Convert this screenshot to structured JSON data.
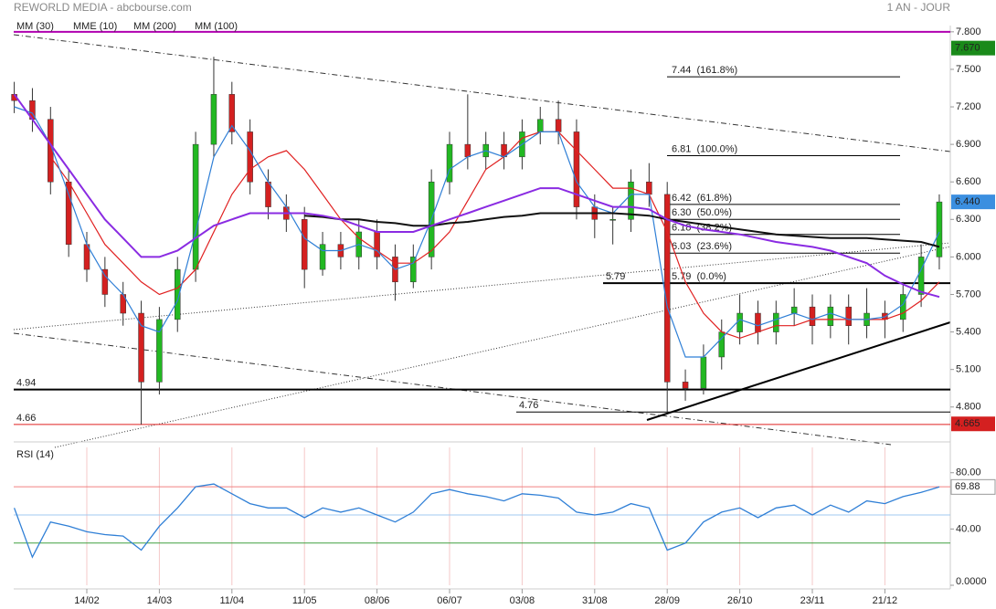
{
  "chart_data": {
    "type": "candlestick",
    "title": "REWORLD MEDIA - abcbourse.com",
    "period": "1 AN - JOUR",
    "categories": [
      null,
      null,
      null,
      null,
      "14/02",
      null,
      null,
      null,
      "14/03",
      null,
      null,
      null,
      "11/04",
      null,
      null,
      null,
      "11/05",
      null,
      null,
      null,
      "08/06",
      null,
      null,
      null,
      "06/07",
      null,
      null,
      null,
      "03/08",
      null,
      null,
      null,
      "31/08",
      null,
      null,
      null,
      "28/09",
      null,
      null,
      null,
      "26/10",
      null,
      null,
      null,
      "23/11",
      null,
      null,
      null,
      "21/12",
      null,
      null,
      null
    ],
    "open": [
      7.3,
      7.25,
      7.1,
      6.6,
      6.1,
      5.9,
      5.7,
      5.55,
      5.0,
      5.5,
      5.9,
      6.9,
      7.3,
      7.0,
      6.6,
      6.4,
      6.3,
      5.9,
      6.1,
      6.0,
      6.2,
      6.0,
      5.8,
      6.0,
      6.6,
      6.9,
      6.8,
      6.9,
      6.8,
      7.0,
      7.1,
      7.0,
      6.4,
      6.3,
      6.3,
      6.6,
      6.5,
      5.0,
      4.95,
      5.2,
      5.4,
      5.55,
      5.4,
      5.55,
      5.6,
      5.45,
      5.6,
      5.45,
      5.55,
      5.5,
      5.7,
      6.0
    ],
    "high": [
      7.4,
      7.35,
      7.2,
      6.7,
      6.2,
      6.0,
      5.8,
      5.65,
      5.6,
      6.0,
      7.0,
      7.6,
      7.4,
      7.1,
      6.7,
      6.5,
      6.4,
      6.2,
      6.2,
      6.3,
      6.3,
      6.1,
      6.1,
      6.7,
      7.0,
      7.3,
      7.0,
      7.0,
      7.1,
      7.2,
      7.25,
      7.1,
      6.5,
      6.4,
      6.7,
      6.75,
      6.6,
      5.1,
      5.3,
      5.5,
      5.7,
      5.65,
      5.65,
      5.75,
      5.7,
      5.7,
      5.7,
      5.75,
      5.65,
      5.8,
      6.1,
      6.5
    ],
    "low": [
      7.15,
      7.0,
      6.5,
      6.0,
      5.8,
      5.6,
      5.45,
      4.66,
      4.9,
      5.4,
      5.8,
      6.8,
      6.9,
      6.5,
      6.3,
      6.2,
      5.75,
      5.85,
      5.9,
      5.9,
      5.9,
      5.65,
      5.75,
      5.9,
      6.5,
      6.7,
      6.7,
      6.7,
      6.7,
      6.9,
      6.9,
      6.3,
      6.15,
      6.1,
      6.2,
      6.4,
      4.76,
      4.85,
      4.9,
      5.1,
      5.3,
      5.3,
      5.3,
      5.45,
      5.3,
      5.35,
      5.3,
      5.35,
      5.35,
      5.4,
      5.6,
      5.9
    ],
    "close": [
      7.25,
      7.1,
      6.6,
      6.1,
      5.9,
      5.7,
      5.55,
      5.0,
      5.5,
      5.9,
      6.9,
      7.3,
      7.0,
      6.6,
      6.4,
      6.3,
      5.9,
      6.1,
      6.0,
      6.2,
      6.0,
      5.8,
      6.0,
      6.6,
      6.9,
      6.8,
      6.9,
      6.8,
      7.0,
      7.1,
      7.0,
      6.4,
      6.3,
      6.3,
      6.6,
      6.5,
      5.0,
      4.95,
      5.2,
      5.4,
      5.55,
      5.4,
      5.55,
      5.6,
      5.45,
      5.6,
      5.45,
      5.55,
      5.5,
      5.7,
      6.0,
      6.44
    ],
    "up_color": "#22b822",
    "down_color": "#d42020",
    "series": [
      {
        "name": "MM (30)",
        "color": "#e02020",
        "values": [
          null,
          null,
          6.8,
          6.6,
          6.35,
          6.1,
          5.95,
          5.8,
          5.7,
          5.75,
          5.9,
          6.2,
          6.5,
          6.7,
          6.8,
          6.85,
          6.7,
          6.5,
          6.3,
          6.15,
          6.05,
          5.95,
          5.95,
          6.05,
          6.2,
          6.45,
          6.7,
          6.8,
          6.95,
          7.0,
          7.0,
          6.85,
          6.7,
          6.55,
          6.55,
          6.5,
          6.2,
          5.8,
          5.55,
          5.4,
          5.35,
          5.4,
          5.45,
          5.45,
          5.5,
          5.5,
          5.5,
          5.5,
          5.5,
          5.55,
          5.65,
          5.8
        ]
      },
      {
        "name": "MME (10)",
        "color": "#2f7fd6",
        "values": [
          7.2,
          7.15,
          6.9,
          6.5,
          6.1,
          5.85,
          5.7,
          5.45,
          5.4,
          5.65,
          6.2,
          6.8,
          7.05,
          6.85,
          6.6,
          6.4,
          6.15,
          6.05,
          6.05,
          6.1,
          6.05,
          5.9,
          5.95,
          6.3,
          6.7,
          6.8,
          6.85,
          6.8,
          6.9,
          7.0,
          7.0,
          6.6,
          6.4,
          6.35,
          6.5,
          6.5,
          5.6,
          5.2,
          5.2,
          5.35,
          5.5,
          5.45,
          5.5,
          5.55,
          5.5,
          5.55,
          5.5,
          5.5,
          5.52,
          5.62,
          5.9,
          6.2
        ]
      },
      {
        "name": "MM (200)",
        "color": "#111111",
        "values": [
          null,
          null,
          null,
          null,
          null,
          null,
          null,
          null,
          null,
          null,
          null,
          null,
          null,
          null,
          null,
          null,
          6.33,
          6.32,
          6.3,
          6.3,
          6.28,
          6.27,
          6.25,
          6.25,
          6.27,
          6.28,
          6.3,
          6.32,
          6.33,
          6.35,
          6.35,
          6.35,
          6.35,
          6.35,
          6.34,
          6.33,
          6.3,
          6.28,
          6.26,
          6.24,
          6.22,
          6.2,
          6.18,
          6.17,
          6.16,
          6.15,
          6.15,
          6.15,
          6.14,
          6.13,
          6.12,
          6.08
        ]
      },
      {
        "name": "MM (100)",
        "color": "#8a2be2",
        "values": [
          7.3,
          7.1,
          6.9,
          6.7,
          6.5,
          6.3,
          6.15,
          6.0,
          6.0,
          6.05,
          6.15,
          6.25,
          6.3,
          6.35,
          6.35,
          6.35,
          6.35,
          6.33,
          6.3,
          6.25,
          6.2,
          6.2,
          6.2,
          6.25,
          6.3,
          6.35,
          6.4,
          6.45,
          6.5,
          6.55,
          6.55,
          6.5,
          6.45,
          6.4,
          6.4,
          6.38,
          6.3,
          6.25,
          6.22,
          6.2,
          6.18,
          6.15,
          6.12,
          6.1,
          6.08,
          6.05,
          6.0,
          5.95,
          5.85,
          5.78,
          5.72,
          5.68
        ]
      }
    ],
    "ylim": [
      4.55,
      7.85
    ],
    "yticks": [
      {
        "value": 7.8,
        "label": "7.800"
      },
      {
        "value": 7.5,
        "label": "7.500"
      },
      {
        "value": 7.2,
        "label": "7.200"
      },
      {
        "value": 6.9,
        "label": "6.900"
      },
      {
        "value": 6.6,
        "label": "6.600"
      },
      {
        "value": 6.3,
        "label": "6.300"
      },
      {
        "value": 6.0,
        "label": "6.000"
      },
      {
        "value": 5.7,
        "label": "5.700"
      },
      {
        "value": 5.4,
        "label": "5.400"
      },
      {
        "value": 5.1,
        "label": "5.100"
      },
      {
        "value": 4.8,
        "label": "4.800"
      }
    ],
    "fibonacci": [
      {
        "value": 7.44,
        "label": "7.44  (161.8%)"
      },
      {
        "value": 6.81,
        "label": "6.81  (100.0%)"
      },
      {
        "value": 6.42,
        "label": "6.42  (61.8%)"
      },
      {
        "value": 6.3,
        "label": "6.30  (50.0%)"
      },
      {
        "value": 6.18,
        "label": "6.18  (38.2%)"
      },
      {
        "value": 6.03,
        "label": "6.03  (23.6%)"
      },
      {
        "value": 5.79,
        "label": "5.79  (0.0%)"
      }
    ],
    "levels": [
      {
        "value": 4.94,
        "label": "4.94",
        "color": "#000000"
      },
      {
        "value": 4.66,
        "label": "4.66",
        "color": "#e02020"
      },
      {
        "value": 5.79,
        "label": "5.79",
        "color": "#000000"
      },
      {
        "value": 4.76,
        "label": "4.76",
        "color": "#000000"
      },
      {
        "value": 7.8,
        "color": "#b000b0"
      }
    ],
    "badges": [
      {
        "value": 7.67,
        "label": "7.670",
        "color": "#1a8a1a"
      },
      {
        "value": 6.44,
        "label": "6.440",
        "color": "#3b8fe0"
      },
      {
        "value": 4.665,
        "label": "4.665",
        "color": "#d42020"
      }
    ],
    "rsi": {
      "name": "RSI (14)",
      "color": "#2f7fd6",
      "values": [
        55,
        20,
        45,
        42,
        38,
        36,
        35,
        25,
        42,
        55,
        70,
        72,
        65,
        58,
        55,
        55,
        48,
        55,
        52,
        55,
        50,
        45,
        52,
        65,
        68,
        65,
        63,
        60,
        65,
        64,
        62,
        52,
        50,
        52,
        58,
        55,
        25,
        30,
        45,
        52,
        55,
        48,
        55,
        57,
        50,
        57,
        52,
        60,
        58,
        63,
        66,
        69.88
      ],
      "value_label": "69.88",
      "ylim": [
        0,
        98
      ],
      "yticks": [
        {
          "value": 80,
          "label": "80.00"
        },
        {
          "value": 40,
          "label": "40.00"
        },
        {
          "value": 0,
          "label": "0.0000"
        }
      ],
      "levels": [
        {
          "value": 70,
          "color": "#f08080"
        },
        {
          "value": 50,
          "color": "#a0c8f0"
        },
        {
          "value": 30,
          "color": "#40a040"
        }
      ]
    }
  }
}
